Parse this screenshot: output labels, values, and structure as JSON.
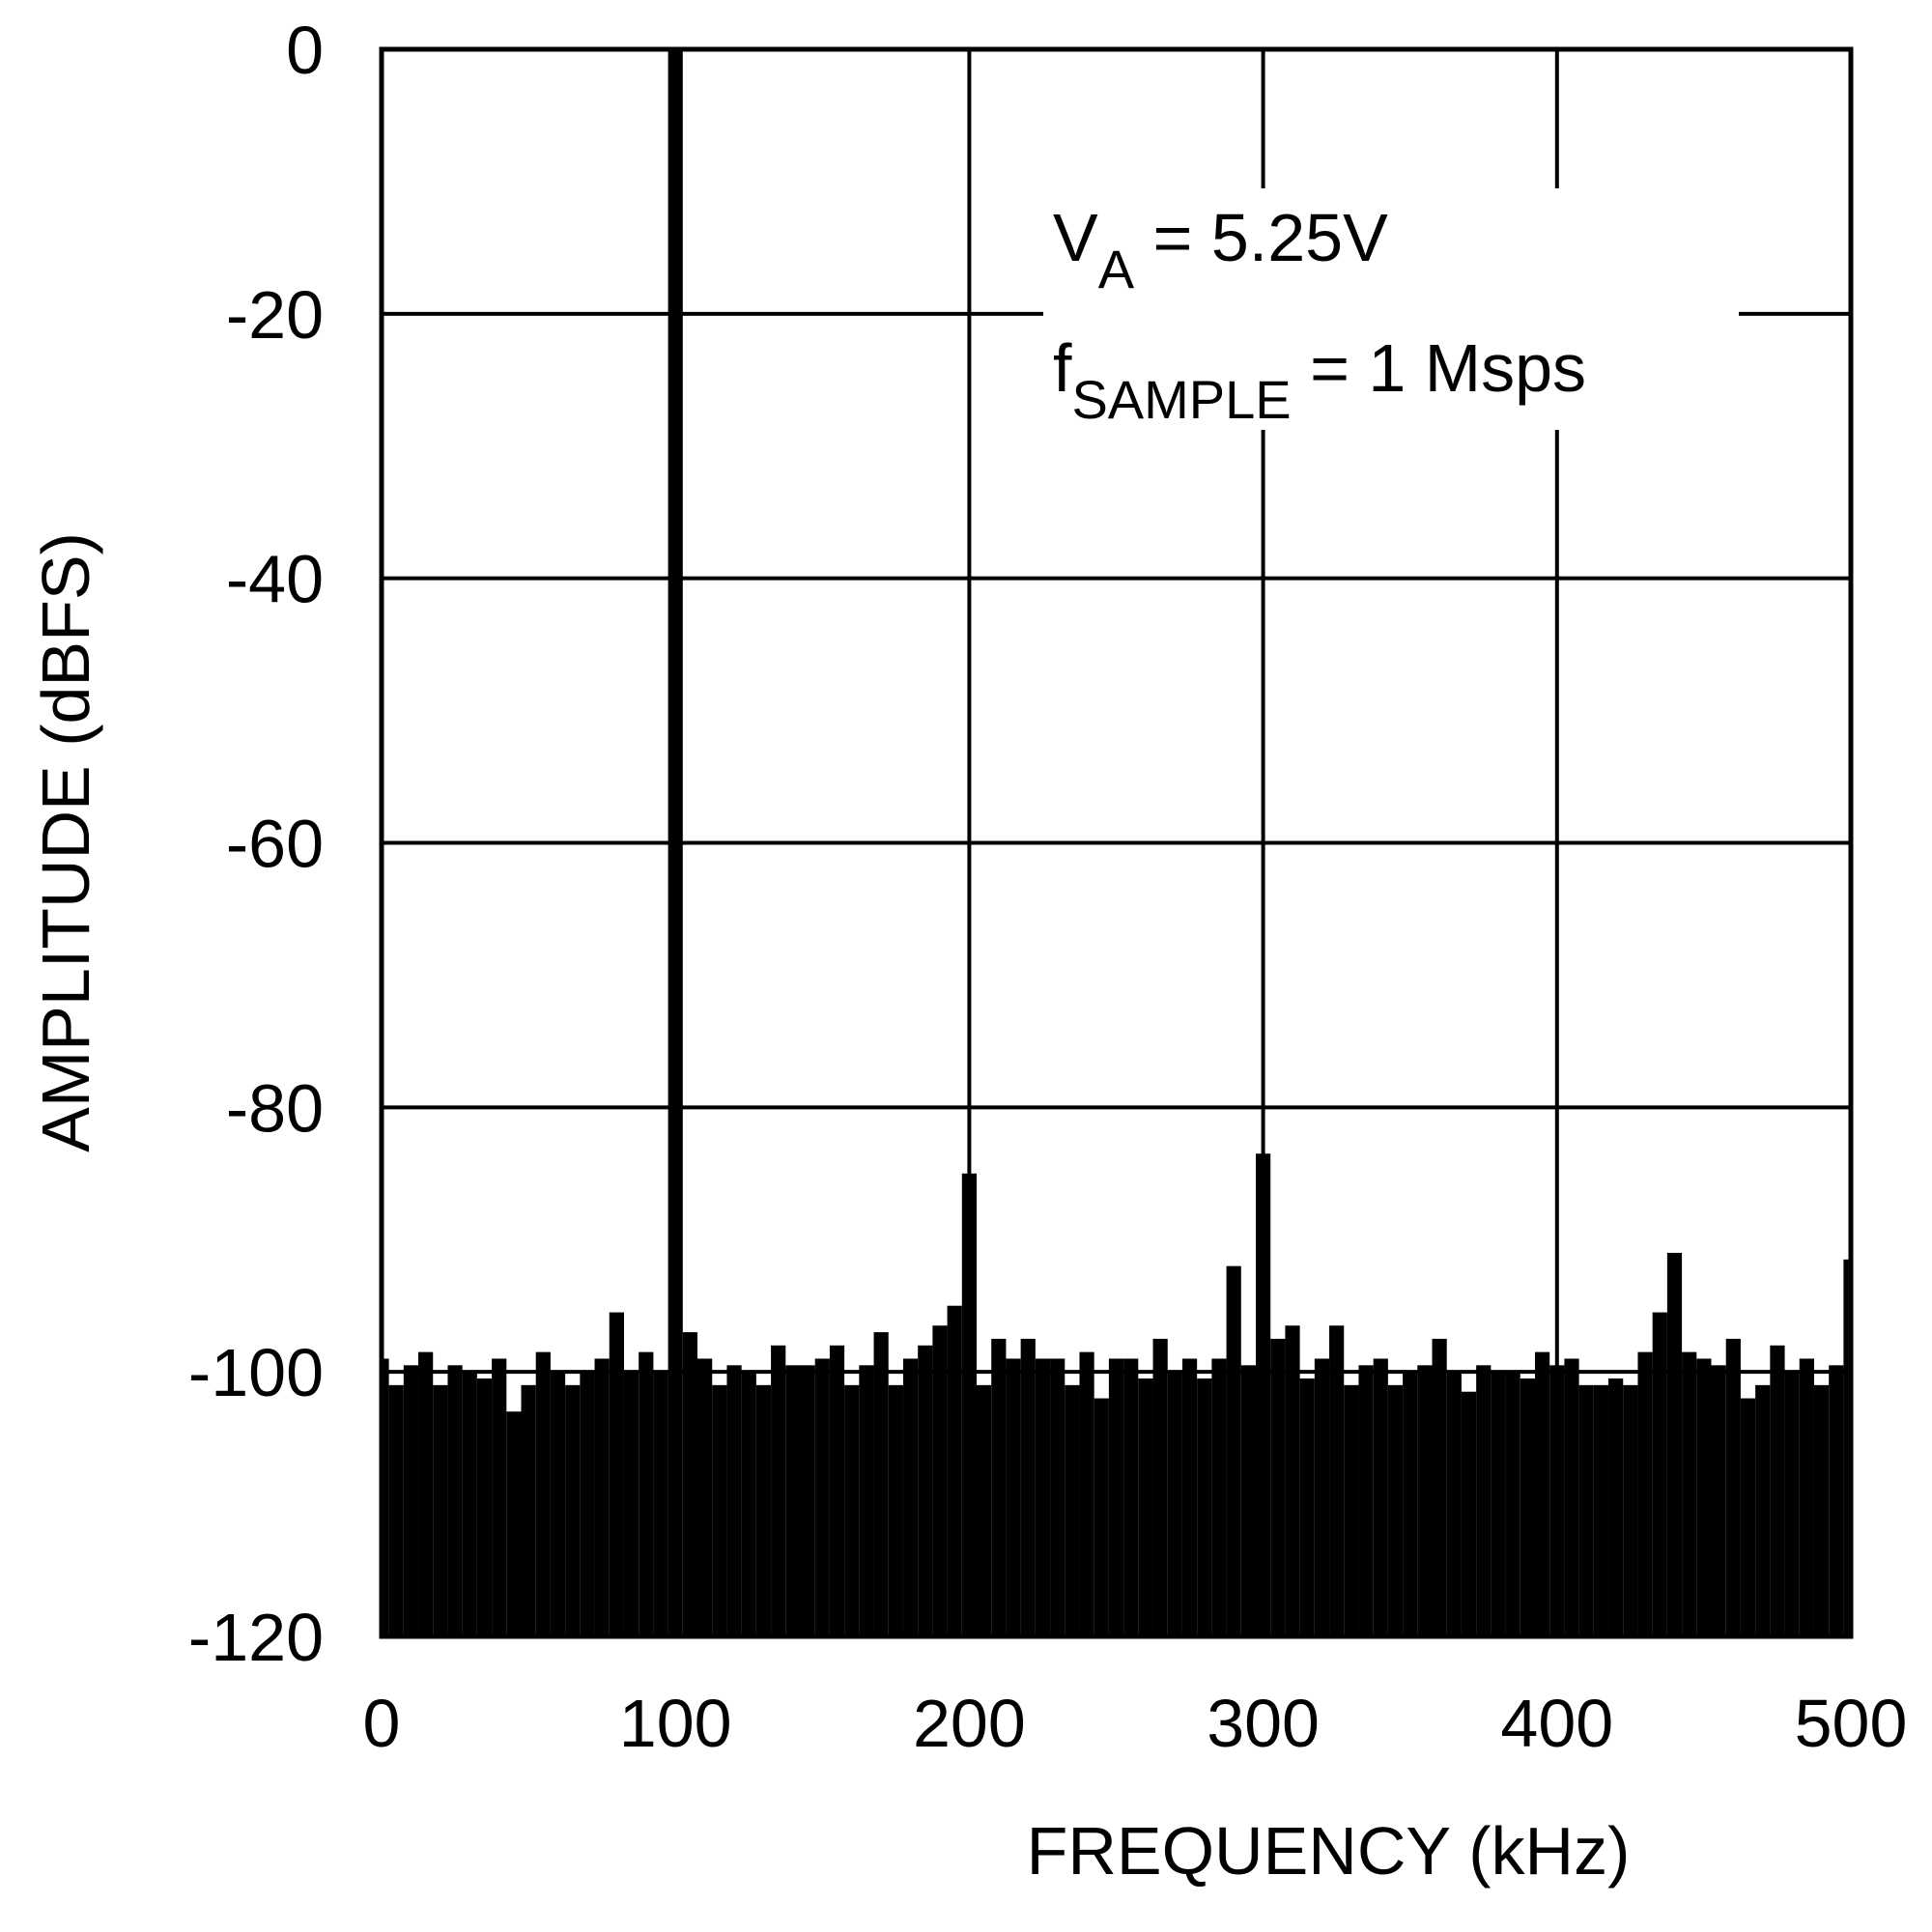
{
  "chart_data": {
    "type": "bar",
    "x_label": "FREQUENCY (kHz)",
    "y_label": "AMPLITUDE (dBFS)",
    "annotations": [
      [
        "V",
        "A",
        " = 5.25V"
      ],
      [
        "f",
        "SAMPLE",
        " = 1 Msps"
      ]
    ],
    "color": "#000000",
    "grid": true,
    "xlim": [
      0,
      500
    ],
    "xticks": [
      0,
      100,
      200,
      300,
      400,
      500
    ],
    "ylim": [
      -120,
      0
    ],
    "yticks": [
      0,
      -20,
      -40,
      -60,
      -80,
      -100,
      -120
    ],
    "x": [
      0,
      5,
      10,
      15,
      20,
      25,
      30,
      35,
      40,
      45,
      50,
      55,
      60,
      65,
      70,
      75,
      80,
      85,
      90,
      95,
      100,
      105,
      110,
      115,
      120,
      125,
      130,
      135,
      140,
      145,
      150,
      155,
      160,
      165,
      170,
      175,
      180,
      185,
      190,
      195,
      200,
      205,
      210,
      215,
      220,
      225,
      230,
      235,
      240,
      245,
      250,
      255,
      260,
      265,
      270,
      275,
      280,
      285,
      290,
      295,
      300,
      305,
      310,
      315,
      320,
      325,
      330,
      335,
      340,
      345,
      350,
      355,
      360,
      365,
      370,
      375,
      380,
      385,
      390,
      395,
      400,
      405,
      410,
      415,
      420,
      425,
      430,
      435,
      440,
      445,
      450,
      455,
      460,
      465,
      470,
      475,
      480,
      485,
      490,
      495,
      500
    ],
    "values": [
      -99,
      -101,
      -99.5,
      -98.5,
      -101,
      -99.5,
      -100,
      -100.5,
      -99,
      -103,
      -101,
      -98.5,
      -100,
      -101,
      -100,
      -99,
      -95.5,
      -100,
      -98.5,
      -100,
      0,
      -97,
      -99,
      -101,
      -99.5,
      -100,
      -101,
      -98,
      -99.5,
      -99.5,
      -99,
      -98,
      -101,
      -99.5,
      -97,
      -101,
      -99,
      -98,
      -96.5,
      -95,
      -85,
      -101,
      -97.5,
      -99,
      -97.5,
      -99,
      -99,
      -101,
      -98.5,
      -102,
      -99,
      -99,
      -100.5,
      -97.5,
      -100,
      -99,
      -100.5,
      -99,
      -92,
      -99.5,
      -83.5,
      -97.5,
      -96.5,
      -100.5,
      -99,
      -96.5,
      -101,
      -99.5,
      -99,
      -101,
      -100,
      -99.5,
      -97.5,
      -100,
      -101.5,
      -99.5,
      -100,
      -100,
      -100.5,
      -98.5,
      -99.5,
      -99,
      -101,
      -101,
      -100.5,
      -101,
      -98.5,
      -95.5,
      -91,
      -98.5,
      -99,
      -99.5,
      -97.5,
      -102,
      -101,
      -98,
      -100,
      -99,
      -101,
      -99.5,
      -91.5
    ]
  }
}
